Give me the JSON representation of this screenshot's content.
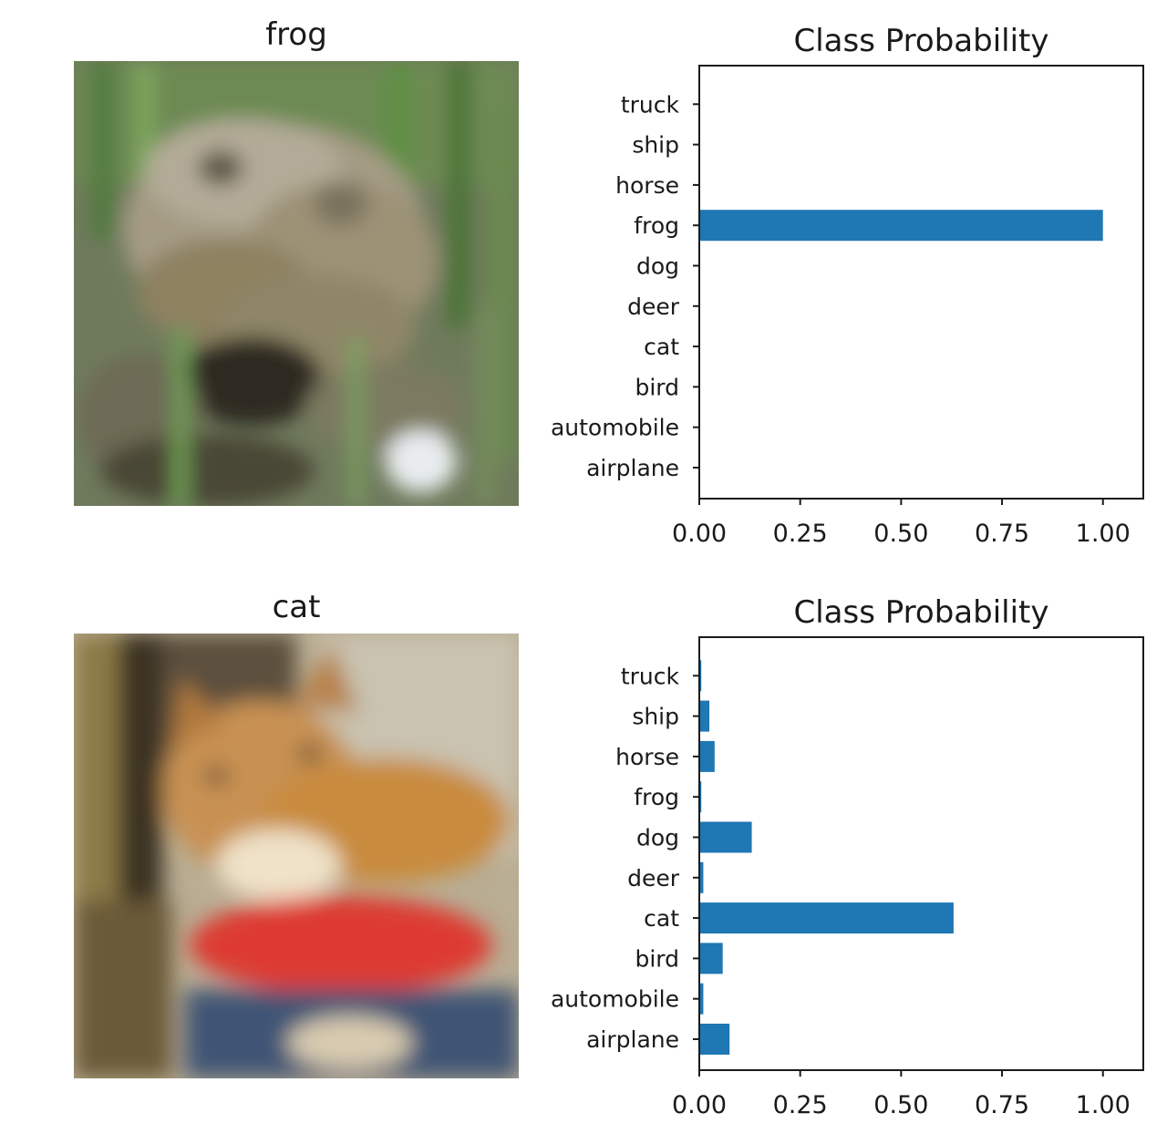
{
  "panels": [
    {
      "image_title": "frog",
      "image_subject": "blurry photo of a grey-brown frog among green grass blades"
    },
    {
      "image_title": "cat",
      "image_subject": "blurry photo of an orange and white cat with a red cloth"
    }
  ],
  "colors": {
    "bar": "#1f77b4",
    "axis": "#1a1a1a"
  },
  "chart_data": [
    {
      "type": "bar",
      "orientation": "horizontal",
      "title": "Class Probability",
      "categories": [
        "airplane",
        "automobile",
        "bird",
        "cat",
        "deer",
        "dog",
        "frog",
        "horse",
        "ship",
        "truck"
      ],
      "values": [
        0.0,
        0.0,
        0.0,
        0.0,
        0.0,
        0.0,
        1.0,
        0.0,
        0.0,
        0.0
      ],
      "xlim": [
        0.0,
        1.1
      ],
      "xticks": [
        "0.00",
        "0.25",
        "0.50",
        "0.75",
        "1.00"
      ],
      "grid": false
    },
    {
      "type": "bar",
      "orientation": "horizontal",
      "title": "Class Probability",
      "categories": [
        "airplane",
        "automobile",
        "bird",
        "cat",
        "deer",
        "dog",
        "frog",
        "horse",
        "ship",
        "truck"
      ],
      "values": [
        0.075,
        0.01,
        0.058,
        0.63,
        0.01,
        0.13,
        0.005,
        0.038,
        0.025,
        0.005
      ],
      "xlim": [
        0.0,
        1.1
      ],
      "xticks": [
        "0.00",
        "0.25",
        "0.50",
        "0.75",
        "1.00"
      ],
      "grid": false
    }
  ]
}
